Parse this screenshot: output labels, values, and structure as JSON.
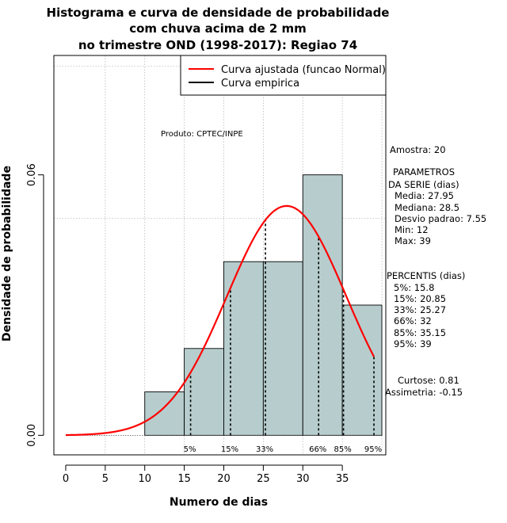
{
  "title_lines": [
    "Histograma e curva de densidade de probabilidade",
    "com chuva acima de 2 mm",
    "no trimestre OND (1998-2017): Regiao 74"
  ],
  "product_label": "Produto: CPTEC/INPE",
  "side_text": {
    "amostra": "Amostra: 20",
    "parametros": [
      "PARAMETROS",
      "DA SERIE (dias)",
      "Media: 27.95",
      "Mediana: 28.5",
      "Desvio padrao: 7.55",
      "Min: 12",
      "Max: 39"
    ],
    "percentis": [
      "PERCENTIS (dias)",
      "5%: 15.8",
      "15%: 20.85",
      "33%: 25.27",
      "66%: 32",
      "85%: 35.15",
      "95%: 39"
    ],
    "curtose": "Curtose: 0.81",
    "assimetria": "Assimetria: -0.15"
  },
  "colors": {
    "bar_fill": "#b7cdcd",
    "normal_curve": "#ff0000",
    "empirical": "#000000",
    "grid": "#b0b0b0"
  },
  "chart_data": {
    "type": "bar",
    "subtype": "histogram",
    "xlabel": "Numero de dias",
    "ylabel": "Densidade de probabilidade",
    "xlim": [
      -1.5,
      40.5
    ],
    "ylim": [
      -0.0045,
      0.0875
    ],
    "x_ticks": [
      0,
      5,
      10,
      15,
      20,
      25,
      30,
      35
    ],
    "x_tick_labels": [
      "0",
      "5",
      "10",
      "15",
      "20",
      "25",
      "30",
      "35"
    ],
    "y_ticks": [
      0.0,
      0.06
    ],
    "y_tick_labels": [
      "0.00",
      "0.06"
    ],
    "bins": [
      {
        "start": 10,
        "end": 15,
        "density": 0.01
      },
      {
        "start": 15,
        "end": 20,
        "density": 0.02
      },
      {
        "start": 20,
        "end": 25,
        "density": 0.04
      },
      {
        "start": 25,
        "end": 30,
        "density": 0.04
      },
      {
        "start": 30,
        "end": 35,
        "density": 0.06
      },
      {
        "start": 35,
        "end": 40,
        "density": 0.03
      }
    ],
    "normal_fit": {
      "mean": 27.95,
      "sd": 7.55,
      "x_range": [
        0,
        39
      ]
    },
    "percentiles": [
      {
        "label": "5%",
        "value": 15.8
      },
      {
        "label": "15%",
        "value": 20.85
      },
      {
        "label": "33%",
        "value": 25.27
      },
      {
        "label": "66%",
        "value": 32
      },
      {
        "label": "85%",
        "value": 35.15
      },
      {
        "label": "95%",
        "value": 39
      }
    ],
    "grid": true,
    "legend": {
      "position": "top-right",
      "entries": [
        {
          "name": "Curva ajustada (funcao Normal)",
          "color": "#ff0000"
        },
        {
          "name": "Curva empirica",
          "color": "#000000"
        }
      ]
    }
  }
}
